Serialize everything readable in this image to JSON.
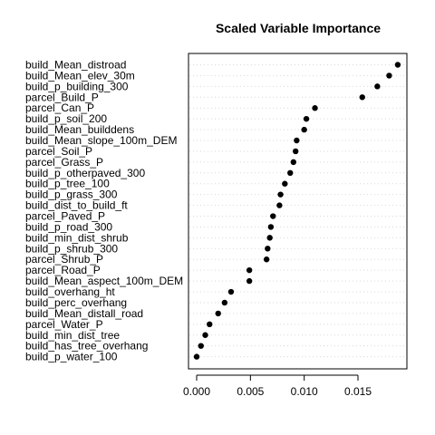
{
  "chart_data": {
    "type": "scatter",
    "title": "Scaled Variable Importance",
    "xlabel": "",
    "ylabel": "",
    "xlim": [
      -0.0005,
      0.0189
    ],
    "xticks": [
      0.0,
      0.005,
      0.01,
      0.015
    ],
    "xtick_labels": [
      "0.000",
      "0.005",
      "0.010",
      "0.015"
    ],
    "grid": "horizontal-dotted",
    "legend": "none",
    "categories": [
      "build_Mean_distroad",
      "build_Mean_elev_30m",
      "build_p_building_300",
      "parcel_Build_P",
      "parcel_Can_P",
      "build_p_soil_200",
      "build_Mean_builddens",
      "build_Mean_slope_100m_DEM",
      "parcel_Soil_P",
      "parcel_Grass_P",
      "build_p_otherpaved_300",
      "build_p_tree_100",
      "build_p_grass_300",
      "build_dist_to_build_ft",
      "parcel_Paved_P",
      "build_p_road_300",
      "build_min_dist_shrub",
      "build_p_shrub_300",
      "parcel_Shrub_P",
      "parcel_Road_P",
      "build_Mean_aspect_100m_DEM",
      "build_overhang_ht",
      "build_perc_overhang",
      "build_Mean_distall_road",
      "parcel_Water_P",
      "build_min_dist_tree",
      "build_has_tree_overhang",
      "build_p_water_100"
    ],
    "values": [
      0.0187,
      0.0179,
      0.0168,
      0.0154,
      0.011,
      0.0102,
      0.01,
      0.0093,
      0.0092,
      0.009,
      0.0087,
      0.0082,
      0.0078,
      0.0077,
      0.0071,
      0.0069,
      0.0068,
      0.0066,
      0.0065,
      0.0049,
      0.0049,
      0.0032,
      0.0026,
      0.002,
      0.0012,
      0.0008,
      0.0004,
      0.0
    ]
  }
}
